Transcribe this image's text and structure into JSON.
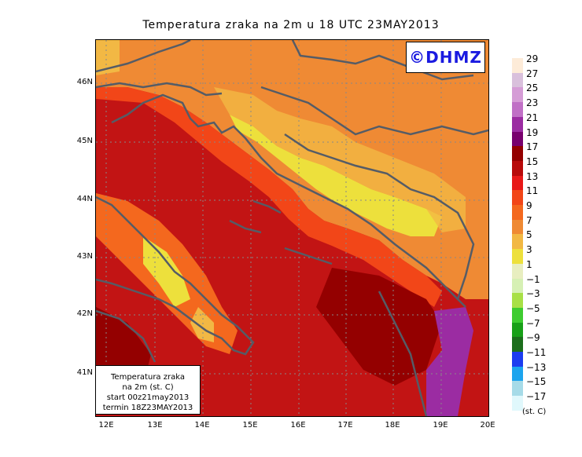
{
  "title": "Temperatura zraka na 2m u 18 UTC 23MAY2013",
  "logo": "©DHMZ",
  "info_box": {
    "line1": "Temperatura zraka",
    "line2": "na 2m (st. C)",
    "line3": "start 00z21may2013",
    "line4": "termin 18Z23MAY2013"
  },
  "lat_labels": [
    "46N",
    "45N",
    "44N",
    "43N",
    "42N",
    "41N"
  ],
  "lon_labels": [
    "12E",
    "13E",
    "14E",
    "15E",
    "16E",
    "17E",
    "18E",
    "19E",
    "20E"
  ],
  "legend": {
    "unit": "(st. C)",
    "levels": [
      "29",
      "27",
      "25",
      "23",
      "21",
      "19",
      "17",
      "15",
      "13",
      "11",
      "9",
      "7",
      "5",
      "3",
      "1",
      "−1",
      "−3",
      "−5",
      "−7",
      "−9",
      "−11",
      "−13",
      "−15",
      "−17"
    ],
    "colors": [
      "#fdebd8",
      "#d9c0dc",
      "#d59cd6",
      "#c070c6",
      "#9b2ca2",
      "#78006e",
      "#940000",
      "#b80a0a",
      "#e81818",
      "#f24618",
      "#f4681e",
      "#ef8a34",
      "#f2b844",
      "#ede03c",
      "#e8eec0",
      "#d6f0b4",
      "#a8e046",
      "#3ecc30",
      "#18a018",
      "#1c6e1c",
      "#1c3cf0",
      "#1ca4ee",
      "#a6dbe8",
      "#e0f8fc"
    ]
  }
}
